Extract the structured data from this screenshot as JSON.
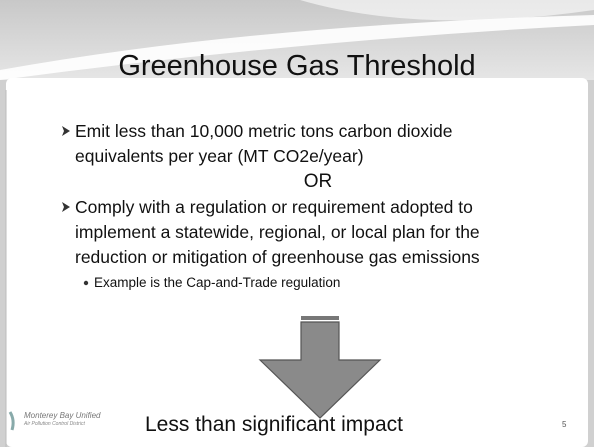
{
  "title": "Greenhouse Gas Threshold",
  "bullets": [
    {
      "lines": [
        "Emit less than 10,000 metric tons carbon dioxide",
        "equivalents per year (MT CO2e/year)"
      ]
    },
    {
      "lines": [
        "Comply with a regulation or requirement adopted to",
        "implement a statewide, regional, or local plan for the",
        "reduction or mitigation of greenhouse gas emissions"
      ]
    }
  ],
  "separator": "OR",
  "sub_bullet": "Example is the Cap-and-Trade regulation",
  "conclusion": "Less than significant impact",
  "logo": {
    "name": "Monterey Bay Unified",
    "subtitle": "Air Pollution Control District"
  },
  "page_number": "5"
}
